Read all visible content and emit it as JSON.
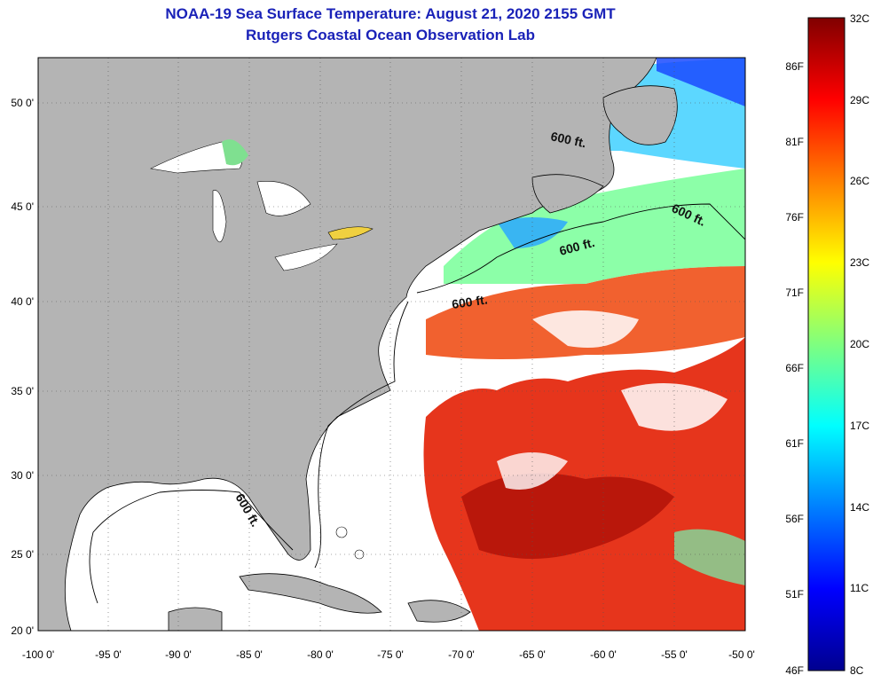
{
  "title": {
    "line1": "NOAA-19 Sea Surface Temperature:  August 21, 2020 2155 GMT",
    "line2": "Rutgers Coastal Ocean Observation Lab"
  },
  "axes": {
    "lat_labels": [
      "50 0'",
      "45 0'",
      "40 0'",
      "35 0'",
      "30 0'",
      "25 0'",
      "20 0'"
    ],
    "lon_labels": [
      "-100 0'",
      "-95 0'",
      "-90 0'",
      "-85 0'",
      "-80 0'",
      "-75 0'",
      "-70 0'",
      "-65 0'",
      "-60 0'",
      "-55 0'",
      "-50 0'"
    ]
  },
  "contour": {
    "label": "600 ft."
  },
  "colorbar": {
    "celsius_labels": [
      "32C",
      "29C",
      "26C",
      "23C",
      "20C",
      "17C",
      "14C",
      "11C",
      "8C"
    ],
    "fahrenheit_labels": [
      "86F",
      "81F",
      "76F",
      "71F",
      "66F",
      "61F",
      "56F",
      "51F",
      "46F"
    ],
    "min_c": 8,
    "max_c": 32
  },
  "colors": {
    "land": "#b4b4b4",
    "ocean_cloud": "#ffffff",
    "title": "#1a22b8"
  }
}
